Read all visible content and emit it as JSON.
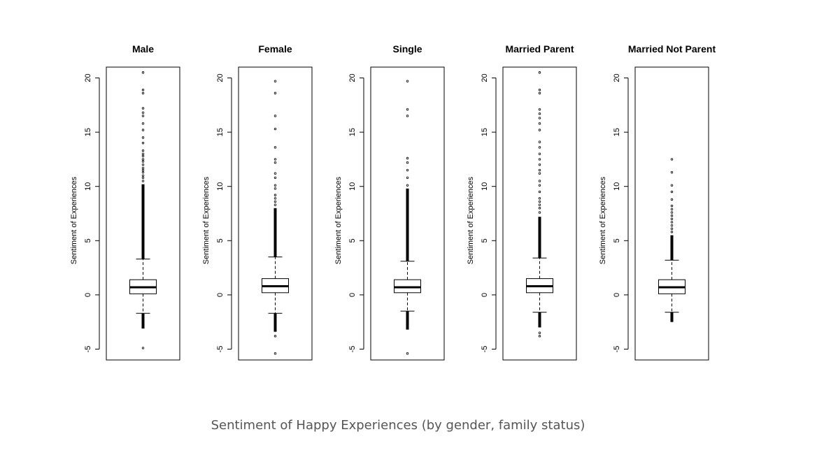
{
  "caption": "Sentiment of Happy Experiences (by gender, family status)",
  "chart_data": [
    {
      "type": "box",
      "title": "Male",
      "ylabel": "Sentiment of Experiences",
      "ylim": [
        -6,
        21
      ],
      "yticks": [
        -5,
        0,
        5,
        10,
        15,
        20
      ],
      "box": {
        "whisker_low": -1.7,
        "q1": 0.1,
        "median": 0.7,
        "q3": 1.4,
        "whisker_high": 3.3
      },
      "outlier_band_high": [
        3.3,
        10.2
      ],
      "outlier_band_low": [
        -1.7,
        -3.1
      ],
      "outliers": [
        -4.9,
        10.5,
        10.8,
        11.0,
        11.3,
        11.5,
        11.7,
        12.0,
        12.3,
        12.5,
        12.8,
        13.0,
        13.3,
        14.0,
        14.5,
        15.2,
        15.8,
        16.5,
        16.8,
        17.2,
        18.6,
        18.9,
        20.5
      ]
    },
    {
      "type": "box",
      "title": "Female",
      "ylabel": "Sentiment of Experiences",
      "ylim": [
        -6,
        21
      ],
      "yticks": [
        -5,
        0,
        5,
        10,
        15,
        20
      ],
      "box": {
        "whisker_low": -1.7,
        "q1": 0.2,
        "median": 0.8,
        "q3": 1.5,
        "whisker_high": 3.5
      },
      "outlier_band_high": [
        3.5,
        8.0
      ],
      "outlier_band_low": [
        -1.7,
        -3.4
      ],
      "outliers": [
        -3.8,
        -5.4,
        8.3,
        8.6,
        8.9,
        9.2,
        9.8,
        10.1,
        10.8,
        11.2,
        12.2,
        12.5,
        13.6,
        15.3,
        16.5,
        18.6,
        19.7
      ]
    },
    {
      "type": "box",
      "title": "Single",
      "ylabel": "Sentiment of Experiences",
      "ylim": [
        -6,
        21
      ],
      "yticks": [
        -5,
        0,
        5,
        10,
        15,
        20
      ],
      "box": {
        "whisker_low": -1.5,
        "q1": 0.2,
        "median": 0.7,
        "q3": 1.4,
        "whisker_high": 3.1
      },
      "outlier_band_high": [
        3.1,
        9.8
      ],
      "outlier_band_low": [
        -1.5,
        -3.2
      ],
      "outliers": [
        -5.4,
        10.1,
        10.8,
        11.5,
        12.2,
        12.6,
        16.5,
        17.1,
        19.7
      ]
    },
    {
      "type": "box",
      "title": "Married Parent",
      "ylabel": "Sentiment of Experiences",
      "ylim": [
        -6,
        21
      ],
      "yticks": [
        -5,
        0,
        5,
        10,
        15,
        20
      ],
      "box": {
        "whisker_low": -1.6,
        "q1": 0.2,
        "median": 0.8,
        "q3": 1.5,
        "whisker_high": 3.4
      },
      "outlier_band_high": [
        3.4,
        7.2
      ],
      "outlier_band_low": [
        -1.6,
        -3.0
      ],
      "outliers": [
        -3.5,
        -3.8,
        7.6,
        8.0,
        8.3,
        8.6,
        8.9,
        9.5,
        10.1,
        10.5,
        11.2,
        11.5,
        12.0,
        12.5,
        13.0,
        13.6,
        14.1,
        15.2,
        15.8,
        16.3,
        16.7,
        17.1,
        18.6,
        18.9,
        20.5
      ]
    },
    {
      "type": "box",
      "title": "Married Not Parent",
      "ylabel": "Sentiment of Experiences",
      "ylim": [
        -6,
        21
      ],
      "yticks": [
        -5,
        0,
        5,
        10,
        15,
        20
      ],
      "box": {
        "whisker_low": -1.6,
        "q1": 0.1,
        "median": 0.7,
        "q3": 1.4,
        "whisker_high": 3.2
      },
      "outlier_band_high": [
        3.2,
        5.5
      ],
      "outlier_band_low": [
        -1.6,
        -2.5
      ],
      "outliers": [
        5.8,
        6.1,
        6.4,
        6.7,
        7.0,
        7.3,
        7.6,
        7.9,
        8.2,
        8.8,
        9.5,
        10.1,
        11.3,
        12.5
      ]
    }
  ]
}
